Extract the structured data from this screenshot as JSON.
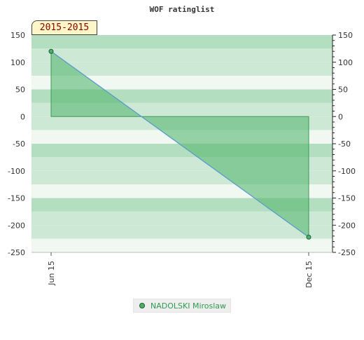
{
  "title": "WOF ratinglist",
  "period": "2015-2015",
  "colors": {
    "band_dark": "#b3dfc0",
    "band_mid": "#cde9d6",
    "band_light": "#f1f8f2",
    "area_fill": "#57b86f",
    "line": "#5b9bd5",
    "marker": "#4caf6a",
    "legend_text": "#2e9a50"
  },
  "chart_data": {
    "type": "line",
    "categories": [
      "Jun 15",
      "Dec 15"
    ],
    "series": [
      {
        "name": "NADOLSKI Miroslaw",
        "values": [
          120,
          -222
        ]
      }
    ],
    "ylim": [
      -250,
      150
    ],
    "yticks": [
      150,
      100,
      50,
      0,
      -50,
      -100,
      -150,
      -200,
      -250
    ],
    "ytick_labels": [
      "150",
      "100",
      "50",
      "0",
      "-50",
      "-100",
      "-150",
      "-200",
      "-250"
    ],
    "legend_position": "bottom-center",
    "grid": "horizontal bands"
  }
}
